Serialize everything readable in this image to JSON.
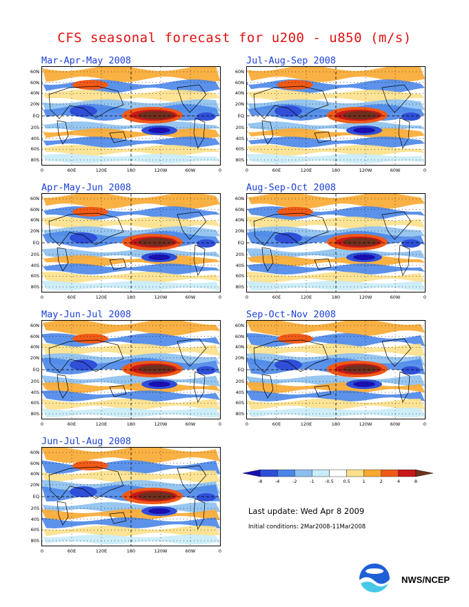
{
  "title": "CFS seasonal forecast for u200 - u850 (m/s)",
  "panels": [
    {
      "label": "Mar-Apr-May 2008"
    },
    {
      "label": "Jul-Aug-Sep 2008"
    },
    {
      "label": "Apr-May-Jun 2008"
    },
    {
      "label": "Aug-Sep-Oct 2008"
    },
    {
      "label": "May-Jun-Jul 2008"
    },
    {
      "label": "Sep-Oct-Nov 2008"
    },
    {
      "label": "Jun-Jul-Aug 2008"
    }
  ],
  "lat_labels": [
    "60N",
    "60N",
    "40N",
    "20N",
    "EQ",
    "20S",
    "40S",
    "60S",
    "80S"
  ],
  "lon_labels": [
    "0",
    "60E",
    "120E",
    "180",
    "120W",
    "60W",
    "0"
  ],
  "colorbar": {
    "labels": [
      "-8",
      "-4",
      "-2",
      "-1",
      "-0.5",
      "0.5",
      "1",
      "2",
      "4",
      "8"
    ],
    "colors": [
      "#1a0fb0",
      "#2f4fd8",
      "#4a86e8",
      "#8cc0f0",
      "#c8ecf8",
      "#ffffff",
      "#fde08a",
      "#f9a830",
      "#f05a18",
      "#c81818",
      "#70301e"
    ]
  },
  "last_update": "Last update: Wed Apr 8 2009",
  "initial_conditions": "Initial conditions: 2Mar2008-11Mar2008",
  "org_name": "NWS/NCEP",
  "logo_icon": "noaa-logo-icon"
}
